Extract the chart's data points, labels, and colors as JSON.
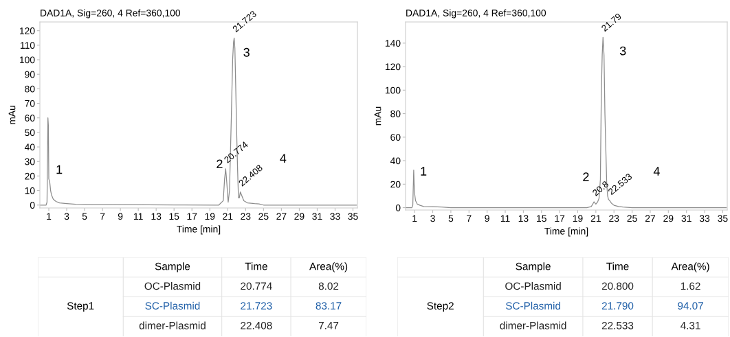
{
  "chart_data": [
    {
      "type": "line",
      "title": "DAD1A, Sig=260, 4 Ref=360,100",
      "xlabel": "Time [min]",
      "ylabel": "mAu",
      "xlim": [
        0,
        35.5
      ],
      "ylim": [
        -2,
        126
      ],
      "xticks": [
        1,
        3,
        5,
        7,
        9,
        11,
        13,
        15,
        17,
        19,
        21,
        23,
        25,
        27,
        29,
        31,
        33,
        35
      ],
      "yticks": [
        0,
        10,
        20,
        30,
        40,
        50,
        60,
        70,
        80,
        90,
        100,
        110,
        120
      ],
      "grid": false,
      "marker": "none",
      "line_style": "solid",
      "series": [
        {
          "color": "#8c8c8c",
          "x": [
            0,
            0.7,
            0.8,
            0.9,
            0.95,
            1.0,
            1.1,
            1.2,
            1.3,
            1.5,
            1.8,
            2.2,
            3,
            4,
            6,
            8,
            12,
            16,
            20,
            20.5,
            20.65,
            20.77,
            20.9,
            21.05,
            21.2,
            21.4,
            21.55,
            21.65,
            21.72,
            21.8,
            21.9,
            22.0,
            22.1,
            22.2,
            22.3,
            22.41,
            22.6,
            22.8,
            23.2,
            24,
            24.5,
            25,
            30,
            35.4
          ],
          "values": [
            0,
            0,
            2,
            60,
            55,
            18,
            16,
            10,
            7,
            4,
            2.5,
            1.5,
            1,
            0.5,
            0.3,
            0.3,
            0.2,
            0.1,
            0,
            3,
            18,
            25,
            15,
            2,
            10,
            60,
            100,
            112,
            115,
            108,
            80,
            50,
            25,
            5,
            5,
            9,
            6,
            3,
            1.5,
            1,
            0.8,
            0,
            0,
            0
          ]
        }
      ],
      "annotations": [
        "1",
        "2",
        "3",
        "4",
        {
          "text": "21.723",
          "x": 21.723,
          "y": 115
        },
        {
          "text": "20.774",
          "x": 20.774,
          "y": 25
        },
        {
          "text": "22.408",
          "x": 22.408,
          "y": 9
        }
      ]
    },
    {
      "type": "line",
      "title": "DAD1A, Sig=260, 4 Ref=360,100",
      "xlabel": "Time [min]",
      "ylabel": "mAu",
      "xlim": [
        0,
        35.5
      ],
      "ylim": [
        -2,
        158
      ],
      "xticks": [
        1,
        3,
        5,
        7,
        9,
        11,
        13,
        15,
        17,
        19,
        21,
        23,
        25,
        27,
        29,
        31,
        33,
        35
      ],
      "yticks": [
        0,
        20,
        40,
        60,
        80,
        100,
        120,
        140
      ],
      "grid": false,
      "marker": "none",
      "line_style": "solid",
      "series": [
        {
          "color": "#8c8c8c",
          "x": [
            0,
            0.7,
            0.8,
            0.9,
            0.95,
            1.0,
            1.1,
            1.3,
            1.6,
            2,
            3,
            4,
            5,
            10,
            15,
            20,
            20.5,
            20.8,
            21.0,
            21.2,
            21.35,
            21.5,
            21.6,
            21.7,
            21.79,
            21.9,
            22.0,
            22.1,
            22.2,
            22.3,
            22.4,
            22.53,
            22.7,
            23,
            23.5,
            24,
            25,
            30,
            35.4
          ],
          "values": [
            0,
            0,
            2,
            32,
            20,
            12,
            6,
            3,
            2,
            1,
            0.8,
            0.5,
            0,
            0,
            0,
            0,
            1,
            5,
            3,
            5,
            8,
            24,
            95,
            130,
            145,
            130,
            80,
            50,
            20,
            10,
            7,
            6,
            4,
            2,
            1,
            0.5,
            0,
            0,
            0
          ]
        }
      ],
      "annotations": [
        "1",
        "2",
        "3",
        "4",
        {
          "text": "21.79",
          "x": 21.79,
          "y": 145
        },
        {
          "text": "20.8",
          "x": 20.8,
          "y": 5
        },
        {
          "text": "22.533",
          "x": 22.533,
          "y": 6
        }
      ]
    },
    {
      "type": "other",
      "colors": [
        "#222222",
        "#1f5fa8",
        "#222222"
      ],
      "annotations": [
        "Sample",
        "Time",
        "Area(%)",
        "Step1",
        "OC-Plasmid",
        "20.774",
        "8.02",
        "SC-Plasmid",
        "21.723",
        "83.17",
        "dimer-Plasmid",
        "22.408",
        "7.47"
      ]
    },
    {
      "type": "other",
      "colors": [
        "#222222",
        "#1f5fa8",
        "#222222"
      ],
      "annotations": [
        "Sample",
        "Time",
        "Area(%)",
        "Step2",
        "OC-Plasmid",
        "20.800",
        "1.62",
        "SC-Plasmid",
        "21.790",
        "94.07",
        "dimer-Plasmid",
        "22.533",
        "4.31"
      ]
    }
  ]
}
